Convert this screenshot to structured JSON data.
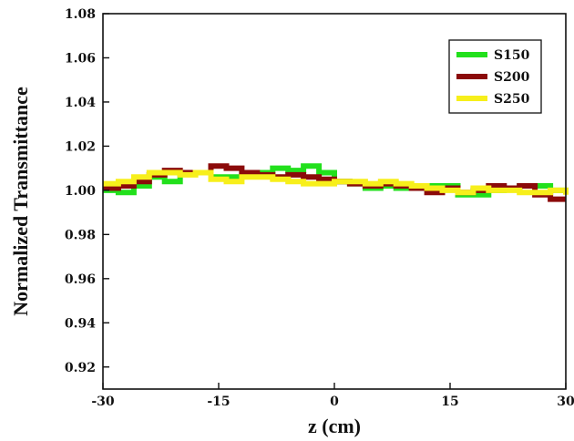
{
  "chart_data": {
    "type": "line",
    "xlabel": "z (cm)",
    "ylabel": "Normalized Transmittance",
    "xlim": [
      -30,
      30
    ],
    "ylim": [
      0.91,
      1.08
    ],
    "xticks": [
      -30,
      -15,
      0,
      15,
      30
    ],
    "xtick_labels": [
      "-30",
      "-15",
      "0",
      "15",
      "30"
    ],
    "yticks": [
      0.92,
      0.94,
      0.96,
      0.98,
      1.0,
      1.02,
      1.04,
      1.06,
      1.08
    ],
    "ytick_labels": [
      "0.92",
      "0.94",
      "0.96",
      "0.98",
      "1.00",
      "1.02",
      "1.04",
      "1.06",
      "1.08"
    ],
    "grid": false,
    "legend_position": "top-right",
    "series": [
      {
        "name": "S150",
        "color": "#22e01c",
        "x": [
          -30,
          -28,
          -26,
          -24,
          -22,
          -20,
          -18,
          -16,
          -14,
          -12,
          -10,
          -8,
          -6,
          -4,
          -2,
          0,
          2,
          4,
          6,
          8,
          10,
          12,
          14,
          16,
          18,
          20,
          22,
          24,
          26,
          28,
          30
        ],
        "y": [
          1.0,
          0.999,
          1.002,
          1.006,
          1.004,
          1.008,
          1.008,
          1.006,
          1.006,
          1.007,
          1.008,
          1.01,
          1.009,
          1.011,
          1.008,
          1.004,
          1.003,
          1.001,
          1.002,
          1.001,
          1.001,
          1.002,
          1.002,
          0.998,
          0.998,
          1.0,
          1.001,
          1.002,
          1.002,
          1.0,
          0.999
        ]
      },
      {
        "name": "S200",
        "color": "#8b0a0a",
        "x": [
          -30,
          -28,
          -26,
          -24,
          -22,
          -20,
          -18,
          -16,
          -14,
          -12,
          -10,
          -8,
          -6,
          -4,
          -2,
          0,
          2,
          4,
          6,
          8,
          10,
          12,
          14,
          16,
          18,
          20,
          22,
          24,
          26,
          28,
          30
        ],
        "y": [
          1.001,
          1.002,
          1.004,
          1.007,
          1.009,
          1.008,
          1.008,
          1.011,
          1.01,
          1.008,
          1.007,
          1.006,
          1.007,
          1.006,
          1.005,
          1.004,
          1.003,
          1.002,
          1.003,
          1.002,
          1.001,
          0.999,
          1.001,
          0.999,
          1.0,
          1.002,
          1.001,
          1.002,
          0.998,
          0.996,
          0.996
        ]
      },
      {
        "name": "S250",
        "color": "#f7ef1b",
        "x": [
          -30,
          -28,
          -26,
          -24,
          -22,
          -20,
          -18,
          -16,
          -14,
          -12,
          -10,
          -8,
          -6,
          -4,
          -2,
          0,
          2,
          4,
          6,
          8,
          10,
          12,
          14,
          16,
          18,
          20,
          22,
          24,
          26,
          28,
          30
        ],
        "y": [
          1.003,
          1.004,
          1.006,
          1.008,
          1.008,
          1.007,
          1.008,
          1.005,
          1.004,
          1.006,
          1.006,
          1.005,
          1.004,
          1.003,
          1.003,
          1.004,
          1.004,
          1.003,
          1.004,
          1.003,
          1.002,
          1.001,
          1.0,
          0.999,
          1.001,
          1.0,
          1.0,
          0.999,
          0.999,
          1.0,
          0.998
        ]
      }
    ]
  }
}
